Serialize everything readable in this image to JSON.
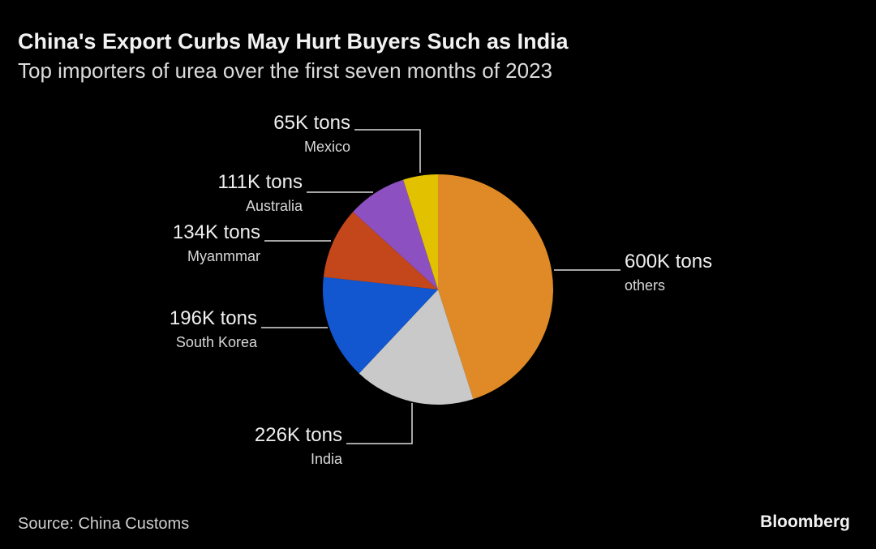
{
  "chart_data": {
    "type": "pie",
    "title": "China's Export Curbs May Hurt Buyers Such as India",
    "subtitle": "Top importers of urea over the first seven months of 2023",
    "categories": [
      "others",
      "India",
      "South Korea",
      "Myanmmar",
      "Australia",
      "Mexico"
    ],
    "values": [
      600,
      226,
      196,
      134,
      111,
      65
    ],
    "value_labels": [
      "600K tons",
      "226K tons",
      "196K tons",
      "134K tons",
      "111K tons",
      "65K tons"
    ],
    "colors": [
      "#df8a26",
      "#c9c9c9",
      "#1257d0",
      "#c4471b",
      "#8d50c0",
      "#e2c200"
    ],
    "source": "Source: China Customs",
    "brand": "Bloomberg"
  }
}
